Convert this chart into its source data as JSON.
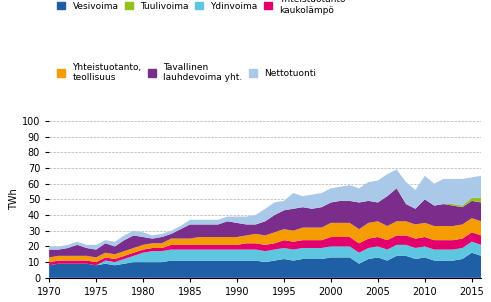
{
  "years": [
    1970,
    1971,
    1972,
    1973,
    1974,
    1975,
    1976,
    1977,
    1978,
    1979,
    1980,
    1981,
    1982,
    1983,
    1984,
    1985,
    1986,
    1987,
    1988,
    1989,
    1990,
    1991,
    1992,
    1993,
    1994,
    1995,
    1996,
    1997,
    1998,
    1999,
    2000,
    2001,
    2002,
    2003,
    2004,
    2005,
    2006,
    2007,
    2008,
    2009,
    2010,
    2011,
    2012,
    2013,
    2014,
    2015,
    2016
  ],
  "vesivoima": [
    8,
    9,
    9,
    9,
    9,
    8,
    9,
    8,
    9,
    10,
    10,
    10,
    10,
    11,
    11,
    11,
    11,
    11,
    11,
    11,
    11,
    11,
    11,
    10,
    11,
    12,
    11,
    12,
    12,
    12,
    13,
    13,
    13,
    9,
    12,
    13,
    11,
    14,
    14,
    12,
    13,
    11,
    11,
    11,
    12,
    16,
    14
  ],
  "tuulivoima": [
    0,
    0,
    0,
    0,
    0,
    0,
    0,
    0,
    0,
    0,
    0,
    0,
    0,
    0,
    0,
    0,
    0,
    0,
    0,
    0,
    0,
    0,
    0,
    0,
    0,
    0,
    0,
    0,
    0,
    0,
    0,
    0,
    0,
    0,
    0,
    0,
    0,
    0,
    0,
    0,
    0,
    0,
    0,
    1,
    1,
    2,
    3
  ],
  "ydinvoima": [
    0,
    0,
    0,
    0,
    0,
    0,
    2,
    2,
    3,
    4,
    6,
    7,
    7,
    7,
    7,
    7,
    7,
    7,
    7,
    7,
    7,
    7,
    7,
    7,
    7,
    7,
    7,
    7,
    7,
    7,
    7,
    7,
    7,
    7,
    7,
    7,
    7,
    7,
    7,
    7,
    7,
    7,
    7,
    7,
    7,
    7,
    7
  ],
  "yhteistuotanto_kl": [
    2,
    2,
    2,
    2,
    2,
    2,
    2,
    2,
    2,
    2,
    2,
    2,
    2,
    3,
    3,
    3,
    3,
    3,
    3,
    3,
    3,
    4,
    4,
    4,
    4,
    5,
    5,
    5,
    5,
    5,
    6,
    6,
    6,
    6,
    6,
    6,
    6,
    6,
    6,
    6,
    6,
    6,
    6,
    6,
    6,
    6,
    6
  ],
  "yhteistuotanto_t": [
    3,
    3,
    3,
    3,
    3,
    3,
    3,
    3,
    3,
    3,
    3,
    3,
    3,
    4,
    4,
    4,
    5,
    5,
    5,
    5,
    5,
    5,
    6,
    6,
    7,
    7,
    7,
    8,
    8,
    8,
    9,
    9,
    9,
    9,
    10,
    10,
    9,
    9,
    9,
    9,
    9,
    9,
    9,
    9,
    9,
    9,
    9
  ],
  "tavallinen": [
    5,
    4,
    5,
    7,
    5,
    5,
    6,
    5,
    7,
    8,
    5,
    3,
    4,
    3,
    6,
    9,
    8,
    8,
    8,
    10,
    9,
    7,
    6,
    9,
    11,
    12,
    14,
    13,
    12,
    13,
    13,
    14,
    14,
    17,
    14,
    12,
    19,
    21,
    11,
    10,
    15,
    13,
    14,
    13,
    11,
    11,
    12
  ],
  "nettotuonti": [
    2,
    2,
    2,
    2,
    2,
    3,
    2,
    3,
    3,
    3,
    3,
    2,
    2,
    2,
    2,
    3,
    3,
    3,
    3,
    3,
    4,
    5,
    6,
    8,
    8,
    6,
    10,
    7,
    9,
    9,
    9,
    9,
    10,
    9,
    12,
    14,
    14,
    12,
    14,
    12,
    15,
    14,
    16,
    16,
    17,
    13,
    14
  ],
  "colors": {
    "vesivoima": "#1f5fa6",
    "tuulivoima": "#93c01f",
    "ydinvoima": "#5ec6e0",
    "yhteistuotanto_kl": "#e3006e",
    "yhteistuotanto_t": "#f59c00",
    "tavallinen": "#7b2d8b",
    "nettotuonti": "#aac8e8"
  },
  "legend_labels": {
    "vesivoima": "Vesivoima",
    "tuulivoima": "Tuulivoima",
    "ydinvoima": "Ydinvoima",
    "yhteistuotanto_kl": "Yhteistuotanto\nkaukolämpö",
    "yhteistuotanto_t": "Yhteistuotanto,\nteollisuus",
    "tavallinen": "Tavallinen\nlauhdevoima yht.",
    "nettotuonti": "Nettotuonti"
  },
  "ylabel": "TWh",
  "ylim": [
    0,
    100
  ],
  "yticks": [
    0,
    10,
    20,
    30,
    40,
    50,
    60,
    70,
    80,
    90,
    100
  ],
  "xlim": [
    1970,
    2016
  ],
  "xticks": [
    1970,
    1975,
    1980,
    1985,
    1990,
    1995,
    2000,
    2005,
    2010,
    2015
  ]
}
